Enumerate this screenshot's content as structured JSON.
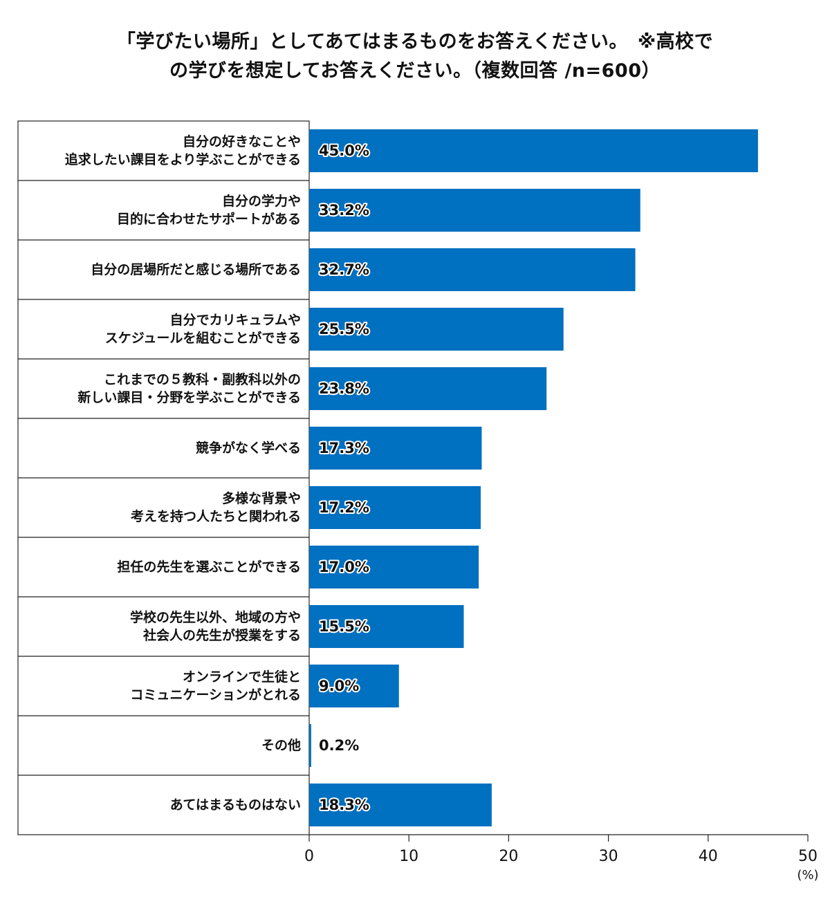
{
  "title": {
    "line1": "「学びたい場所」としてあてはまるものをお答えください。　※高校で",
    "line2": "の学びを想定してお答えください。（複数回答 /n=600）"
  },
  "chart_data": {
    "type": "bar",
    "orientation": "horizontal",
    "categories": [
      [
        "自分の好きなことや",
        "追求したい課目をより学ぶことができる"
      ],
      [
        "自分の学力や",
        "目的に合わせたサポートがある"
      ],
      [
        "自分の居場所だと感じる場所である"
      ],
      [
        "自分でカリキュラムや",
        "スケジュールを組むことができる"
      ],
      [
        "これまでの５教科・副教科以外の",
        "新しい課目・分野を学ぶことができる"
      ],
      [
        "競争がなく学べる"
      ],
      [
        "多様な背景や",
        "考えを持つ人たちと関われる"
      ],
      [
        "担任の先生を選ぶことができる"
      ],
      [
        "学校の先生以外、地域の方や",
        "社会人の先生が授業をする"
      ],
      [
        "オンラインで生徒と",
        "コミュニケーションがとれる"
      ],
      [
        "その他"
      ],
      [
        "あてはまるものはない"
      ]
    ],
    "values": [
      45.0,
      33.2,
      32.7,
      25.5,
      23.8,
      17.3,
      17.2,
      17.0,
      15.5,
      9.0,
      0.2,
      18.3
    ],
    "value_labels": [
      "45.0%",
      "33.2%",
      "32.7%",
      "25.5%",
      "23.8%",
      "17.3%",
      "17.2%",
      "17.0%",
      "15.5%",
      "9.0%",
      "0.2%",
      "18.3%"
    ],
    "xlim": [
      0,
      50
    ],
    "xticks": [
      0,
      10,
      20,
      30,
      40,
      50
    ],
    "xunit": "(%)",
    "bar_color": "#0070C0",
    "grid": false,
    "legend": "none"
  }
}
